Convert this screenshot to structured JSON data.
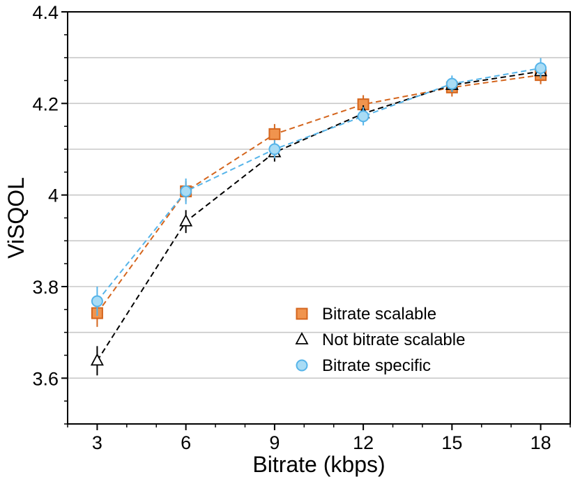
{
  "chart_data": {
    "type": "line",
    "title": "",
    "xlabel": "Bitrate (kbps)",
    "ylabel": "ViSQOL",
    "x": [
      3,
      6,
      9,
      12,
      15,
      18
    ],
    "xticks": [
      3,
      6,
      9,
      12,
      15,
      18
    ],
    "xtick_labels": [
      "3",
      "6",
      "9",
      "12",
      "15",
      "18"
    ],
    "yticks": [
      3.6,
      3.8,
      4.0,
      4.2,
      4.4
    ],
    "ytick_labels": [
      "3.6",
      "3.8",
      "4",
      "4.2",
      "4.4"
    ],
    "xlim": [
      2,
      19
    ],
    "ylim": [
      3.5,
      4.4
    ],
    "grid": "horizontal",
    "legend_position": "lower-right",
    "series": [
      {
        "name": "Bitrate scalable",
        "marker": "square",
        "color": "#d4651d",
        "fill": "#f0944e",
        "values": [
          3.742,
          4.008,
          4.133,
          4.198,
          4.235,
          4.262
        ],
        "errors": [
          0.03,
          0.022,
          0.022,
          0.02,
          0.02,
          0.02
        ]
      },
      {
        "name": "Not bitrate scalable",
        "marker": "triangle",
        "color": "#000000",
        "fill": "#ffffff",
        "values": [
          3.638,
          3.942,
          4.093,
          4.178,
          4.24,
          4.27
        ],
        "errors": [
          0.032,
          0.025,
          0.02,
          0.018,
          0.015,
          0.015
        ]
      },
      {
        "name": "Bitrate specific",
        "marker": "circle",
        "color": "#56b4e9",
        "fill": "#a9dcf5",
        "values": [
          3.768,
          4.008,
          4.1,
          4.172,
          4.243,
          4.277
        ],
        "errors": [
          0.032,
          0.028,
          0.02,
          0.02,
          0.018,
          0.022
        ]
      }
    ]
  }
}
